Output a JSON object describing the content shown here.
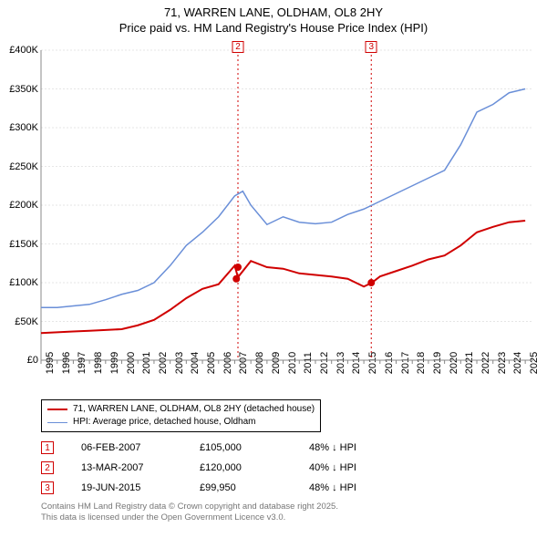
{
  "title": {
    "line1": "71, WARREN LANE, OLDHAM, OL8 2HY",
    "line2": "Price paid vs. HM Land Registry's House Price Index (HPI)"
  },
  "chart": {
    "type": "line",
    "background_color": "#ffffff",
    "grid_color": "#cccccc",
    "x_years": [
      1995,
      1996,
      1997,
      1998,
      1999,
      2000,
      2001,
      2002,
      2003,
      2004,
      2005,
      2006,
      2007,
      2008,
      2009,
      2010,
      2011,
      2012,
      2013,
      2014,
      2015,
      2016,
      2017,
      2018,
      2019,
      2020,
      2021,
      2022,
      2023,
      2024,
      2025
    ],
    "xlim": [
      1995,
      2025.5
    ],
    "ylim": [
      0,
      400000
    ],
    "ytick_step": 50000,
    "y_tick_labels": [
      "£0",
      "£50K",
      "£100K",
      "£150K",
      "£200K",
      "£250K",
      "£300K",
      "£350K",
      "£400K"
    ],
    "series": [
      {
        "name": "price_paid",
        "label": "71, WARREN LANE, OLDHAM, OL8 2HY (detached house)",
        "color": "#d00000",
        "line_width": 2,
        "points": [
          [
            1995,
            35000
          ],
          [
            1996,
            36000
          ],
          [
            1997,
            37000
          ],
          [
            1998,
            38000
          ],
          [
            1999,
            39000
          ],
          [
            2000,
            40000
          ],
          [
            2001,
            45000
          ],
          [
            2002,
            52000
          ],
          [
            2003,
            65000
          ],
          [
            2004,
            80000
          ],
          [
            2005,
            92000
          ],
          [
            2006,
            98000
          ],
          [
            2007,
            122000
          ],
          [
            2007.2,
            107000
          ],
          [
            2008,
            128000
          ],
          [
            2009,
            120000
          ],
          [
            2010,
            118000
          ],
          [
            2011,
            112000
          ],
          [
            2012,
            110000
          ],
          [
            2013,
            108000
          ],
          [
            2014,
            105000
          ],
          [
            2015,
            95000
          ],
          [
            2015.5,
            100000
          ],
          [
            2016,
            108000
          ],
          [
            2017,
            115000
          ],
          [
            2018,
            122000
          ],
          [
            2019,
            130000
          ],
          [
            2020,
            135000
          ],
          [
            2021,
            148000
          ],
          [
            2022,
            165000
          ],
          [
            2023,
            172000
          ],
          [
            2024,
            178000
          ],
          [
            2025,
            180000
          ]
        ],
        "markers": [
          {
            "x": 2007.1,
            "y": 105000
          },
          {
            "x": 2007.2,
            "y": 120000
          },
          {
            "x": 2015.46,
            "y": 99950
          }
        ]
      },
      {
        "name": "hpi",
        "label": "HPI: Average price, detached house, Oldham",
        "color": "#6a8fd8",
        "line_width": 1.5,
        "points": [
          [
            1995,
            68000
          ],
          [
            1996,
            68000
          ],
          [
            1997,
            70000
          ],
          [
            1998,
            72000
          ],
          [
            1999,
            78000
          ],
          [
            2000,
            85000
          ],
          [
            2001,
            90000
          ],
          [
            2002,
            100000
          ],
          [
            2003,
            122000
          ],
          [
            2004,
            148000
          ],
          [
            2005,
            165000
          ],
          [
            2006,
            185000
          ],
          [
            2007,
            212000
          ],
          [
            2007.5,
            218000
          ],
          [
            2008,
            200000
          ],
          [
            2009,
            175000
          ],
          [
            2010,
            185000
          ],
          [
            2011,
            178000
          ],
          [
            2012,
            176000
          ],
          [
            2013,
            178000
          ],
          [
            2014,
            188000
          ],
          [
            2015,
            195000
          ],
          [
            2016,
            205000
          ],
          [
            2017,
            215000
          ],
          [
            2018,
            225000
          ],
          [
            2019,
            235000
          ],
          [
            2020,
            245000
          ],
          [
            2021,
            278000
          ],
          [
            2022,
            320000
          ],
          [
            2023,
            330000
          ],
          [
            2024,
            345000
          ],
          [
            2025,
            350000
          ]
        ]
      }
    ],
    "event_lines": [
      {
        "label": "2",
        "x": 2007.2,
        "color": "#d00000"
      },
      {
        "label": "3",
        "x": 2015.46,
        "color": "#d00000"
      }
    ],
    "marker_boxes_top_y": 45
  },
  "legend": {
    "items": [
      {
        "color": "#d00000",
        "width": 2,
        "label": "71, WARREN LANE, OLDHAM, OL8 2HY (detached house)"
      },
      {
        "color": "#6a8fd8",
        "width": 1.5,
        "label": "HPI: Average price, detached house, Oldham"
      }
    ]
  },
  "events": [
    {
      "num": "1",
      "date": "06-FEB-2007",
      "price": "£105,000",
      "delta": "48% ↓ HPI"
    },
    {
      "num": "2",
      "date": "13-MAR-2007",
      "price": "£120,000",
      "delta": "40% ↓ HPI"
    },
    {
      "num": "3",
      "date": "19-JUN-2015",
      "price": "£99,950",
      "delta": "48% ↓ HPI"
    }
  ],
  "attribution": {
    "line1": "Contains HM Land Registry data © Crown copyright and database right 2025.",
    "line2": "This data is licensed under the Open Government Licence v3.0."
  }
}
